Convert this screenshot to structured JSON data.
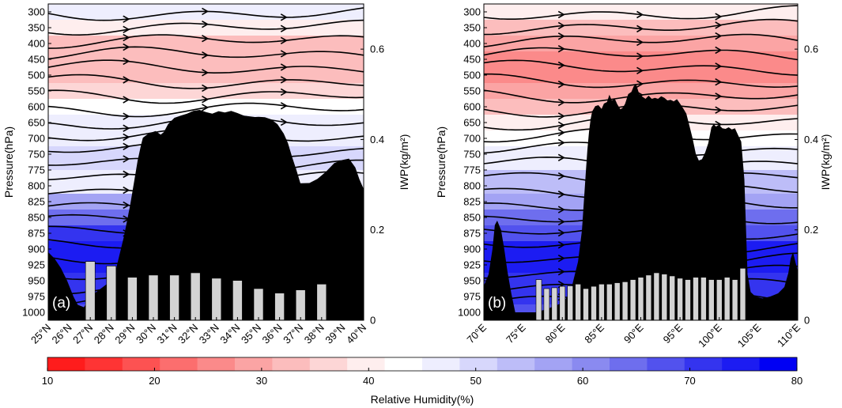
{
  "figure": {
    "colorbar": {
      "label": "Relative Humidity(%)",
      "min": 10,
      "max": 80,
      "ticks": [
        "10",
        "20",
        "30",
        "40",
        "50",
        "60",
        "70",
        "80"
      ],
      "colors": [
        "#fe1c1c",
        "#fe3434",
        "#fd5252",
        "#fc6e6e",
        "#fb8a8a",
        "#fba4a4",
        "#fcbdbd",
        "#fdd6d6",
        "#feeeee",
        "#ffffff",
        "#eeeefe",
        "#d7d7fc",
        "#bdbdf8",
        "#a3a3f4",
        "#8a8af0",
        "#6e6eee",
        "#5252ee",
        "#3434ef",
        "#1c1cf2",
        "#0000f4"
      ]
    },
    "colors": {
      "terrain": "#000000",
      "bar_fill": "#d3d3d3",
      "streamline": "#000000"
    }
  },
  "chart_data": [
    {
      "type": "bar",
      "panel_label": "(a)",
      "title": "",
      "ylabel_left": "Pressure(hPa)",
      "ylabel_right": "IWP(kg/m²)",
      "y_ticks_left": [
        "300",
        "350",
        "400",
        "450",
        "500",
        "550",
        "600",
        "650",
        "700",
        "750",
        "775",
        "800",
        "825",
        "850",
        "875",
        "900",
        "925",
        "950",
        "975",
        "1000"
      ],
      "y_ticks_right": [
        "0",
        "0.2",
        "0.4",
        "0.6"
      ],
      "ylim_right": [
        0,
        0.7
      ],
      "x_ticks": [
        "25°N",
        "26°N",
        "27°N",
        "28°N",
        "29°N",
        "30°N",
        "31°N",
        "32°N",
        "33°N",
        "34°N",
        "35°N",
        "36°N",
        "37°N",
        "38°N",
        "39°N",
        "40°N"
      ],
      "xlim": [
        25,
        40
      ],
      "bar_x": [
        27,
        28,
        29,
        30,
        31,
        32,
        33,
        34,
        35,
        36,
        37,
        38
      ],
      "iwp_values": [
        0.13,
        0.12,
        0.095,
        0.1,
        0.1,
        0.105,
        0.093,
        0.088,
        0.07,
        0.06,
        0.067,
        0.08
      ],
      "terrain_profile": [
        [
          25.0,
          905
        ],
        [
          25.3,
          915
        ],
        [
          25.6,
          930
        ],
        [
          25.9,
          950
        ],
        [
          26.2,
          975
        ],
        [
          26.4,
          988
        ],
        [
          26.7,
          992
        ],
        [
          27.0,
          975
        ],
        [
          27.4,
          965
        ],
        [
          27.8,
          955
        ],
        [
          28.2,
          935
        ],
        [
          28.6,
          880
        ],
        [
          28.9,
          830
        ],
        [
          29.1,
          790
        ],
        [
          29.25,
          760
        ],
        [
          29.4,
          725
        ],
        [
          29.5,
          698
        ],
        [
          29.7,
          688
        ],
        [
          29.9,
          682
        ],
        [
          30.1,
          677
        ],
        [
          30.35,
          688
        ],
        [
          30.5,
          680
        ],
        [
          30.7,
          655
        ],
        [
          31.0,
          635
        ],
        [
          31.3,
          628
        ],
        [
          31.6,
          622
        ],
        [
          31.9,
          613
        ],
        [
          32.2,
          610
        ],
        [
          32.5,
          617
        ],
        [
          32.8,
          622
        ],
        [
          33.1,
          614
        ],
        [
          33.4,
          618
        ],
        [
          33.7,
          613
        ],
        [
          34.0,
          620
        ],
        [
          34.3,
          628
        ],
        [
          34.7,
          633
        ],
        [
          35.0,
          632
        ],
        [
          35.3,
          633
        ],
        [
          35.6,
          640
        ],
        [
          35.9,
          655
        ],
        [
          36.2,
          685
        ],
        [
          36.4,
          715
        ],
        [
          36.6,
          755
        ],
        [
          36.8,
          775
        ],
        [
          37.0,
          797
        ],
        [
          37.4,
          796
        ],
        [
          37.8,
          789
        ],
        [
          38.2,
          778
        ],
        [
          38.6,
          764
        ],
        [
          39.0,
          759
        ],
        [
          39.3,
          757
        ],
        [
          39.6,
          771
        ],
        [
          39.8,
          790
        ],
        [
          40.0,
          805
        ]
      ],
      "rh_levels": [
        [
          300,
          48
        ],
        [
          350,
          38
        ],
        [
          400,
          34
        ],
        [
          450,
          33
        ],
        [
          500,
          33
        ],
        [
          550,
          36
        ],
        [
          600,
          42
        ],
        [
          650,
          45
        ],
        [
          700,
          46
        ],
        [
          750,
          50
        ],
        [
          800,
          47
        ],
        [
          825,
          56
        ],
        [
          850,
          65
        ],
        [
          875,
          70
        ],
        [
          900,
          74
        ],
        [
          925,
          74
        ],
        [
          950,
          72
        ],
        [
          975,
          70
        ],
        [
          1000,
          68
        ]
      ]
    },
    {
      "type": "bar",
      "panel_label": "(b)",
      "title": "",
      "ylabel_left": "Pressure(hPa)",
      "ylabel_right": "IWP(kg/m²)",
      "y_ticks_left": [
        "300",
        "350",
        "400",
        "450",
        "500",
        "550",
        "600",
        "650",
        "700",
        "750",
        "775",
        "800",
        "825",
        "850",
        "875",
        "900",
        "925",
        "950",
        "975",
        "1000"
      ],
      "y_ticks_right": [
        "0",
        "0.2",
        "0.4",
        "0.6"
      ],
      "ylim_right": [
        0,
        0.7
      ],
      "x_ticks": [
        "70°E",
        "75°E",
        "80°E",
        "85°E",
        "90°E",
        "95°E",
        "100°E",
        "105°E",
        "110°E"
      ],
      "xlim": [
        70,
        110
      ],
      "bar_x": [
        77,
        78,
        79,
        80,
        81,
        82,
        83,
        84,
        85,
        86,
        87,
        88,
        89,
        90,
        91,
        92,
        93,
        94,
        95,
        96,
        97,
        98,
        99,
        100,
        101,
        102,
        103
      ],
      "iwp_values": [
        0.09,
        0.07,
        0.072,
        0.075,
        0.076,
        0.08,
        0.07,
        0.075,
        0.08,
        0.08,
        0.083,
        0.085,
        0.09,
        0.095,
        0.1,
        0.105,
        0.102,
        0.098,
        0.093,
        0.09,
        0.095,
        0.095,
        0.09,
        0.09,
        0.095,
        0.09,
        0.115
      ],
      "terrain_profile": [
        [
          70.0,
          958
        ],
        [
          70.6,
          940
        ],
        [
          71.1,
          900
        ],
        [
          71.4,
          862
        ],
        [
          71.7,
          855
        ],
        [
          72.2,
          870
        ],
        [
          72.6,
          900
        ],
        [
          73.0,
          935
        ],
        [
          73.5,
          970
        ],
        [
          74.0,
          1000
        ],
        [
          76.6,
          1000
        ],
        [
          78.0,
          995
        ],
        [
          80.0,
          985
        ],
        [
          81.0,
          970
        ],
        [
          82.0,
          920
        ],
        [
          82.5,
          870
        ],
        [
          83.0,
          778
        ],
        [
          83.2,
          735
        ],
        [
          83.4,
          680
        ],
        [
          83.6,
          640
        ],
        [
          83.8,
          615
        ],
        [
          84.2,
          598
        ],
        [
          84.6,
          595
        ],
        [
          85.0,
          607
        ],
        [
          85.3,
          590
        ],
        [
          85.7,
          585
        ],
        [
          86.0,
          562
        ],
        [
          86.3,
          580
        ],
        [
          86.7,
          575
        ],
        [
          87.0,
          592
        ],
        [
          87.4,
          608
        ],
        [
          87.7,
          603
        ],
        [
          88.0,
          591
        ],
        [
          88.4,
          560
        ],
        [
          88.8,
          553
        ],
        [
          89.1,
          535
        ],
        [
          89.4,
          528
        ],
        [
          89.8,
          560
        ],
        [
          90.2,
          568
        ],
        [
          90.6,
          575
        ],
        [
          91.0,
          565
        ],
        [
          91.4,
          575
        ],
        [
          91.8,
          572
        ],
        [
          92.2,
          575
        ],
        [
          92.6,
          567
        ],
        [
          93.0,
          572
        ],
        [
          93.4,
          580
        ],
        [
          93.8,
          578
        ],
        [
          94.2,
          583
        ],
        [
          94.6,
          576
        ],
        [
          95.0,
          590
        ],
        [
          95.4,
          605
        ],
        [
          95.8,
          622
        ],
        [
          96.2,
          660
        ],
        [
          96.6,
          700
        ],
        [
          97.0,
          748
        ],
        [
          97.4,
          760
        ],
        [
          97.8,
          758
        ],
        [
          98.2,
          745
        ],
        [
          98.6,
          715
        ],
        [
          99.0,
          665
        ],
        [
          99.3,
          655
        ],
        [
          99.6,
          663
        ],
        [
          100.0,
          658
        ],
        [
          100.4,
          668
        ],
        [
          100.8,
          670
        ],
        [
          101.2,
          665
        ],
        [
          101.6,
          672
        ],
        [
          102.0,
          668
        ],
        [
          102.4,
          690
        ],
        [
          102.8,
          710
        ],
        [
          103.2,
          790
        ],
        [
          103.6,
          940
        ],
        [
          104.0,
          968
        ],
        [
          104.6,
          975
        ],
        [
          105.5,
          978
        ],
        [
          106.5,
          975
        ],
        [
          107.5,
          970
        ],
        [
          108.3,
          960
        ],
        [
          108.8,
          938
        ],
        [
          109.1,
          915
        ],
        [
          109.4,
          905
        ],
        [
          109.7,
          920
        ],
        [
          110.0,
          935
        ]
      ],
      "rh_levels": [
        [
          300,
          40
        ],
        [
          350,
          33
        ],
        [
          400,
          30
        ],
        [
          450,
          27
        ],
        [
          500,
          26
        ],
        [
          550,
          28
        ],
        [
          600,
          33
        ],
        [
          650,
          38
        ],
        [
          700,
          42
        ],
        [
          750,
          47
        ],
        [
          800,
          53
        ],
        [
          825,
          58
        ],
        [
          850,
          63
        ],
        [
          875,
          67
        ],
        [
          900,
          73
        ],
        [
          925,
          74
        ],
        [
          950,
          72
        ],
        [
          975,
          70
        ],
        [
          1000,
          68
        ]
      ]
    }
  ]
}
